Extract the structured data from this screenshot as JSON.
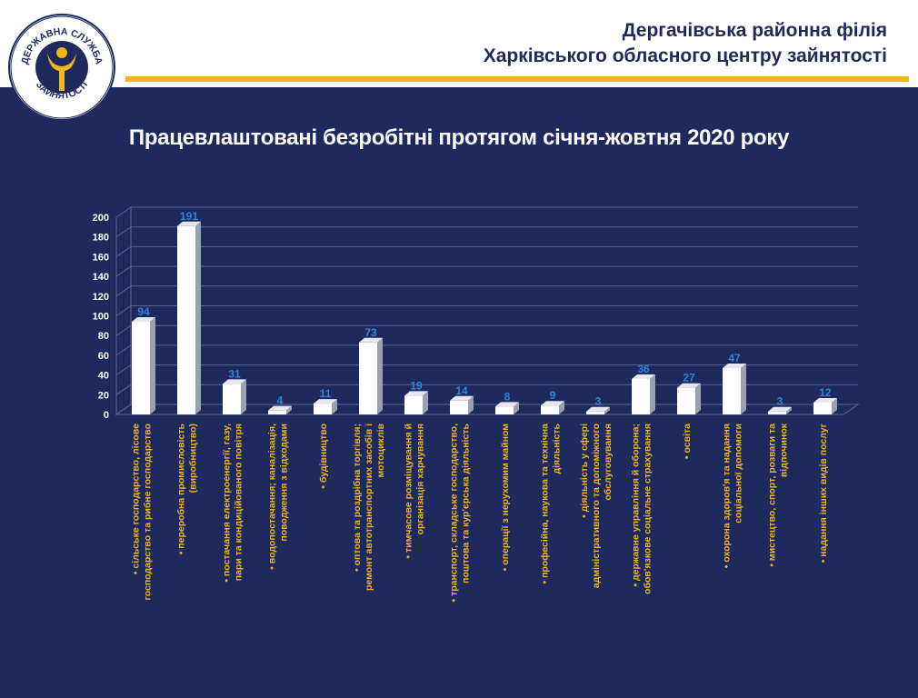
{
  "header": {
    "line1": "Дергачівська районна філія",
    "line2": "Харківського обласного центру зайнятості"
  },
  "logo": {
    "text_top": "ДЕРЖАВНА СЛУЖБА",
    "text_bottom": "ЗАЙНЯТОСТІ",
    "icon": "employment-service-emblem"
  },
  "page_title": "Працевлаштовані безробітні протягом січня-жовтня 2020 року",
  "colors": {
    "navy": "#1e2a5e",
    "gold": "#f2b51c",
    "bar": "#ffffff",
    "value_label": "#2e86d6",
    "category_label": "#f2b51c"
  },
  "chart_data": {
    "type": "bar",
    "title": "Працевлаштовані безробітні протягом січня-жовтня 2020 року",
    "xlabel": "",
    "ylabel": "",
    "ylim": [
      0,
      200
    ],
    "yticks": [
      0,
      20,
      40,
      60,
      80,
      100,
      120,
      140,
      160,
      180,
      200
    ],
    "grid": true,
    "legend": "none",
    "categories": [
      "• сільське господарство, лісове господарство та рибне господарство",
      "• переробна промисловість (виробництво)",
      "• постачання електроенергії, газу, пари та кондиційованого повітря",
      "• водопостачання; каналізація, поводження з відходами",
      "• будівництво",
      "• оптова та роздрібна торгівля; ремонт автотранспортних засобів і мотоциклів",
      "• тимчасове розміщування й організація харчування",
      "• транспорт, складське господарство, поштова та кур'єрська діяльність",
      "• операції з нерухомим майном",
      "• професійна, наукова та технічна діяльність",
      "• діяльність у сфері адміністративного та допоміжного обслуговування",
      "• державне управління й оборона; обов'язкове соціальне страхування",
      "• освіта",
      "• охорона здоров'я та надання соціальної допомоги",
      "• мистецтво, спорт, розваги та відпочинок",
      "• надання інших видів послуг"
    ],
    "values": [
      94,
      191,
      31,
      4,
      11,
      73,
      19,
      14,
      8,
      9,
      3,
      36,
      27,
      47,
      3,
      12
    ]
  }
}
